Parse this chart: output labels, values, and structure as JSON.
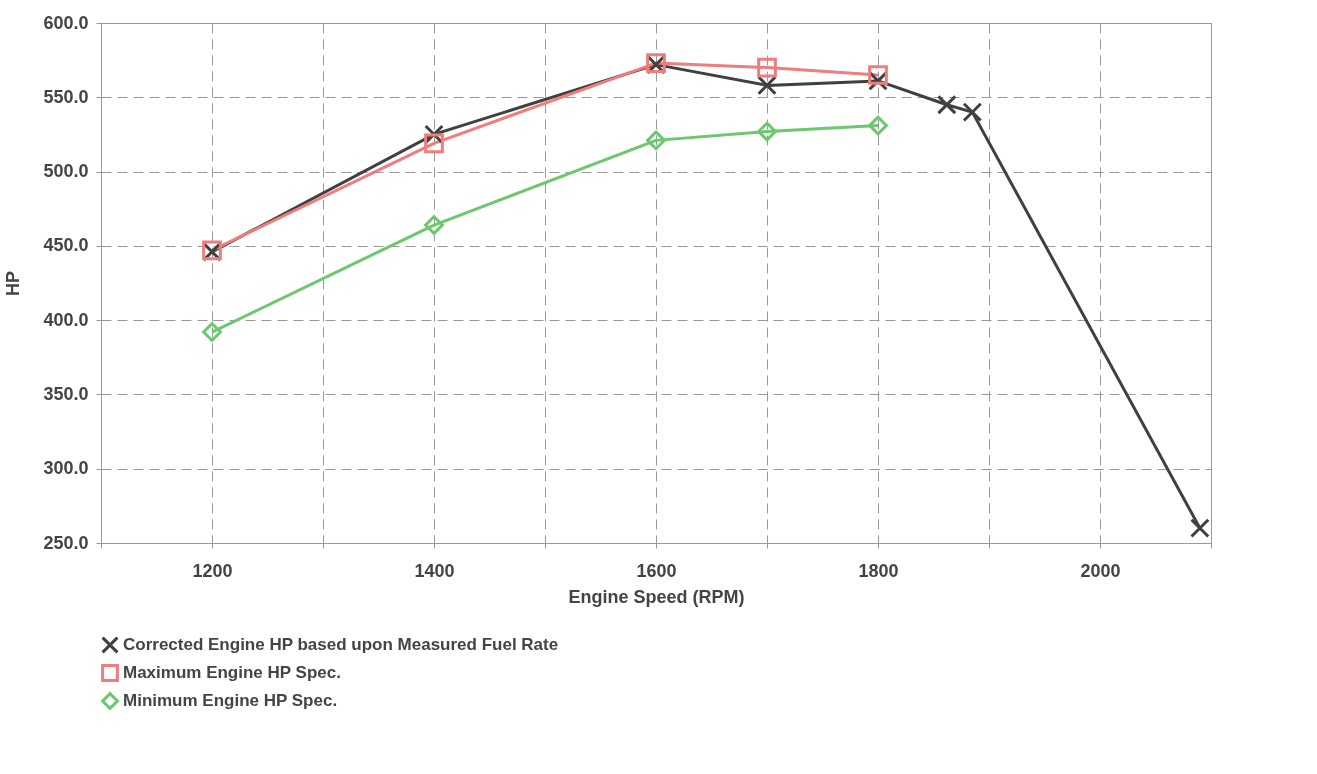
{
  "chart_data": {
    "type": "line",
    "xlabel": "Engine Speed (RPM)",
    "ylabel": "HP",
    "xlim": [
      1100,
      2100
    ],
    "xticks": [
      {
        "value": 1100,
        "label": null
      },
      1200,
      {
        "value": 1300,
        "label": null
      },
      1400,
      {
        "value": 1500,
        "label": null
      },
      1600,
      {
        "value": 1700,
        "label": null
      },
      1800,
      {
        "value": 1900,
        "label": null
      },
      2000,
      {
        "value": 2100,
        "label": null
      }
    ],
    "ylim": [
      250,
      600
    ],
    "yticks": [
      {
        "value": 250,
        "label": "250.0"
      },
      {
        "value": 300,
        "label": "300.0"
      },
      {
        "value": 350,
        "label": "350.0"
      },
      {
        "value": 400,
        "label": "400.0"
      },
      {
        "value": 450,
        "label": "450.0"
      },
      {
        "value": 500,
        "label": "500.0"
      },
      {
        "value": 550,
        "label": "550.0"
      },
      {
        "value": 600,
        "label": "600.0"
      }
    ],
    "grid": true,
    "legend": "bottom left",
    "line_style": "solid",
    "series": [
      {
        "name": "Corrected Engine HP based upon Measured Fuel Rate",
        "color": "#404040",
        "marker": "cross",
        "x": [
          1200,
          1400,
          1600,
          1700,
          1800,
          1862,
          1885,
          2090
        ],
        "values": [
          446,
          525,
          572,
          558,
          561,
          545,
          540,
          260
        ]
      },
      {
        "name": "Maximum Engine HP Spec.",
        "color": "#f07c7c",
        "marker": "square",
        "x": [
          1200,
          1400,
          1600,
          1700,
          1800
        ],
        "values": [
          447,
          519,
          573,
          570,
          565
        ]
      },
      {
        "name": "Minimum Engine HP Spec.",
        "color": "#6cc86c",
        "marker": "diamond",
        "x": [
          1200,
          1400,
          1600,
          1700,
          1800
        ],
        "values": [
          392,
          464,
          521,
          527,
          531
        ]
      }
    ]
  }
}
